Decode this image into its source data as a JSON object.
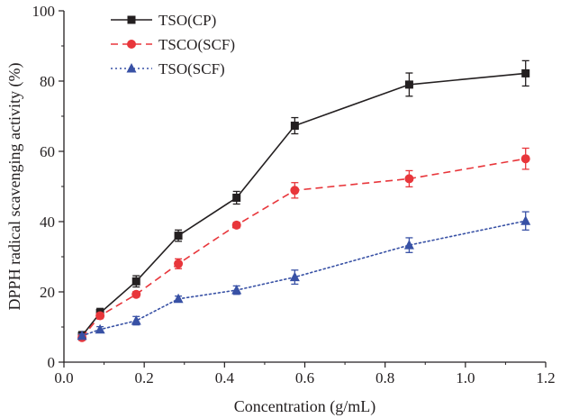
{
  "chart_data": {
    "type": "line",
    "xlabel": "Concentration (g/mL)",
    "ylabel": "DPPH radical scavenging activity (%)",
    "xlim": [
      0.0,
      1.2
    ],
    "ylim": [
      0,
      100
    ],
    "x_ticks": [
      0.0,
      0.2,
      0.4,
      0.6,
      0.8,
      1.0,
      1.2
    ],
    "x_tick_labels": [
      "0.0",
      "0.2",
      "0.4",
      "0.6",
      "0.8",
      "1.0",
      "1.2"
    ],
    "y_ticks": [
      0,
      20,
      40,
      60,
      80,
      100
    ],
    "y_tick_labels": [
      "0",
      "20",
      "40",
      "60",
      "80",
      "100"
    ],
    "grid": false,
    "legend_position": "top-left",
    "x": [
      0.045,
      0.09,
      0.18,
      0.285,
      0.43,
      0.575,
      0.86,
      1.15
    ],
    "series": [
      {
        "name": "TSO(CP)",
        "color": "#231f20",
        "marker": "square",
        "line_style": "solid",
        "values": [
          7.5,
          14,
          23,
          36,
          46.8,
          67.3,
          79,
          82.2
        ],
        "errors": [
          1.2,
          1.3,
          1.6,
          1.6,
          1.8,
          2.3,
          3.3,
          3.6
        ]
      },
      {
        "name": "TSCO(SCF)",
        "color": "#e8363b",
        "marker": "circle",
        "line_style": "dashed",
        "values": [
          7,
          13.2,
          19.3,
          28,
          39,
          48.9,
          52.2,
          57.9
        ],
        "errors": [
          0.8,
          0.8,
          0.8,
          1.4,
          0.8,
          2.2,
          2.3,
          3.0
        ]
      },
      {
        "name": "TSO(SCF)",
        "color": "#3851a5",
        "marker": "triangle",
        "line_style": "dotted",
        "values": [
          7.5,
          9.3,
          11.8,
          18,
          20.5,
          24.2,
          33.3,
          40.2
        ],
        "errors": [
          0.5,
          0.8,
          1.2,
          0.8,
          1.2,
          2.0,
          2.1,
          2.6
        ]
      }
    ]
  }
}
